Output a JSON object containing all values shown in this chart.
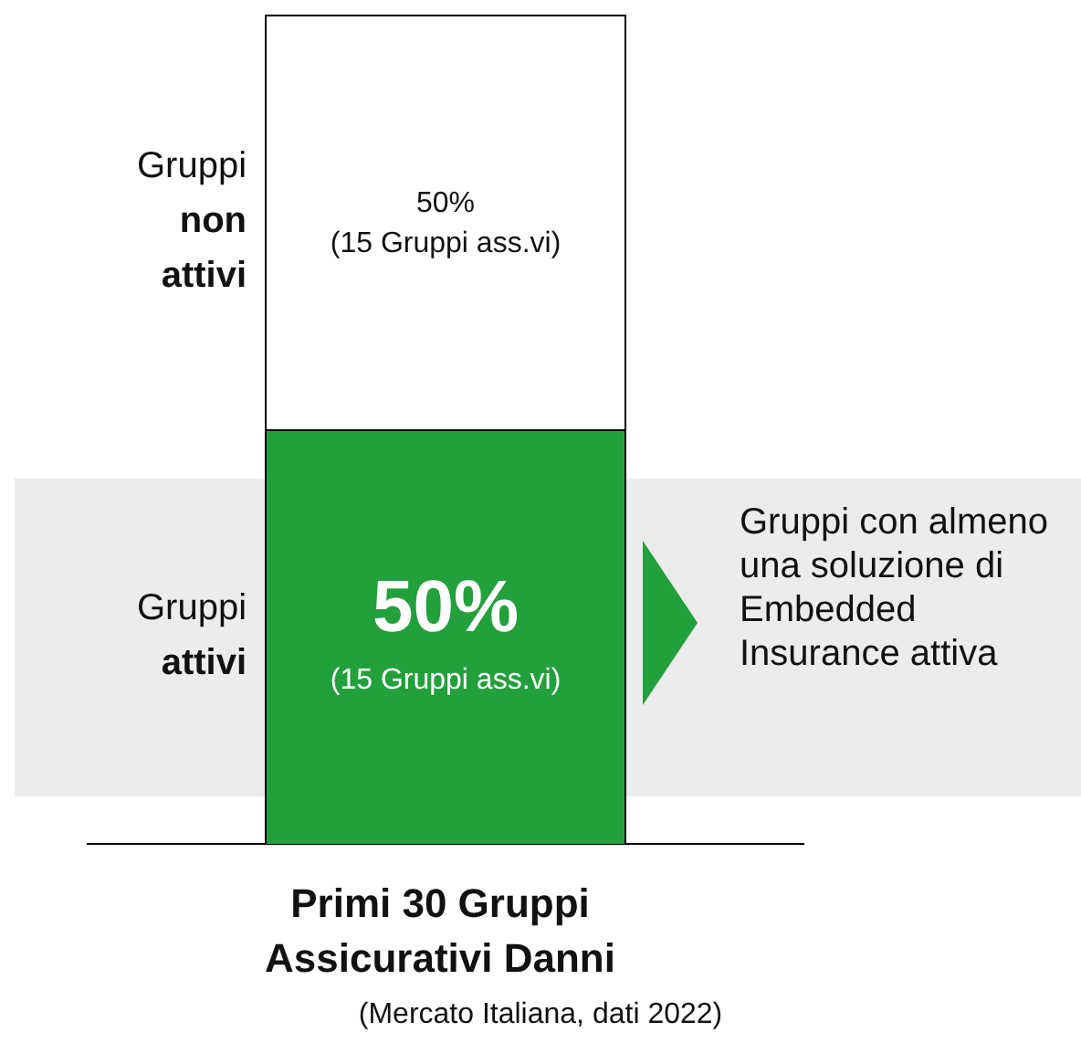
{
  "chart_data": {
    "type": "bar",
    "stacked": true,
    "categories": [
      null
    ],
    "xlabel": "Primi 30 Gruppi Assicurativi Danni",
    "series": [
      {
        "name": "Gruppi attivi",
        "color": "#22a03c",
        "values": [
          50
        ],
        "value_labels": [
          "50%\n(15 Gruppi ass.vi)"
        ]
      },
      {
        "name": "Gruppi non attivi",
        "color": "#ffffff",
        "values": [
          50
        ],
        "value_labels": [
          "50%\n(15 Gruppi ass.vi)"
        ]
      }
    ],
    "annotations": [
      "(Mercato Italiana, dati 2022)",
      "Gruppi con almeno una soluzione di Embedded Insurance attiva"
    ],
    "grid": false,
    "legend": false
  }
}
